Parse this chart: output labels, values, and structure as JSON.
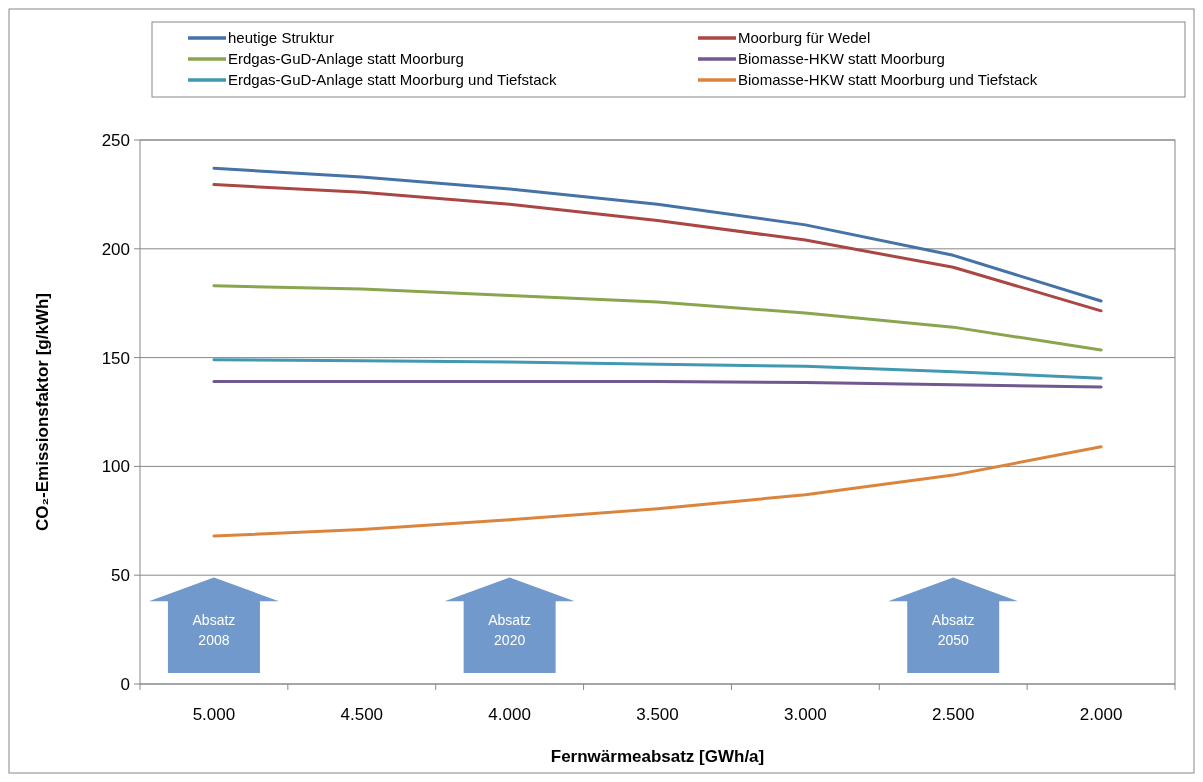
{
  "chart_data": {
    "type": "line",
    "xlabel": "Fernwärmeabsatz [GWh/a]",
    "ylabel": "CO₂-Emissionsfaktor [g/kWh]",
    "categories": [
      "5.000",
      "4.500",
      "4.000",
      "3.500",
      "3.000",
      "2.500",
      "2.000"
    ],
    "ylim": [
      0,
      250
    ],
    "yticks": [
      0,
      50,
      100,
      150,
      200,
      250
    ],
    "grid": "y",
    "legend": "top",
    "marker": "none",
    "line_style": "solid",
    "series": [
      {
        "name": "heutige Struktur",
        "color": "#4572a7",
        "values": [
          237,
          233,
          227.5,
          220.5,
          211,
          197,
          176
        ]
      },
      {
        "name": "Moorburg für Wedel",
        "color": "#aa4643",
        "values": [
          229.5,
          226,
          220.5,
          213,
          204,
          191.5,
          171.5
        ]
      },
      {
        "name": "Erdgas-GuD-Anlage statt Moorburg",
        "color": "#89a54e",
        "values": [
          183,
          181.5,
          178.5,
          175.5,
          170.5,
          164,
          153.5
        ]
      },
      {
        "name": "Biomasse-HKW statt Moorburg",
        "color": "#71588f",
        "values": [
          139,
          139,
          139,
          139,
          138.5,
          137.5,
          136.5
        ]
      },
      {
        "name": "Erdgas-GuD-Anlage statt Moorburg und Tiefstack",
        "color": "#4198af",
        "values": [
          149,
          148.5,
          148,
          147,
          146,
          143.5,
          140.5
        ]
      },
      {
        "name": "Biomasse-HKW statt Moorburg und Tiefstack",
        "color": "#db843d",
        "values": [
          68,
          71,
          75.5,
          80.5,
          87,
          96,
          109
        ]
      }
    ],
    "annotations": [
      "Absatz\n2008",
      "Absatz\n2020",
      "Absatz\n2050"
    ]
  }
}
